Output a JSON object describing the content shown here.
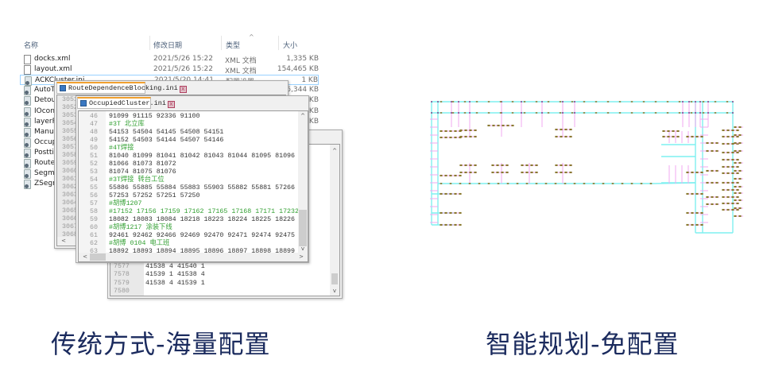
{
  "explorer": {
    "columns": {
      "name": "名称",
      "date": "修改日期",
      "type": "类型",
      "size": "大小"
    },
    "files": [
      {
        "name": "docks.xml",
        "date": "2021/5/26 15:22",
        "type": "XML 文档",
        "size": "1,335 KB",
        "icon": "xml-file-icon"
      },
      {
        "name": "layout.xml",
        "date": "2021/5/26 15:22",
        "type": "XML 文档",
        "size": "154,465 KB",
        "icon": "xml-file-icon"
      },
      {
        "name": "ACKCluster.ini",
        "date": "2021/5/20 14:41",
        "type": "配置设置",
        "size": "1 KB",
        "icon": "ini-file-icon"
      },
      {
        "name": "AutoTra",
        "date": "",
        "type": "",
        "size": "6,344 KB",
        "icon": "ini-file-icon"
      },
      {
        "name": "DetourI",
        "date": "",
        "type": "",
        "size": "KB",
        "icon": "ini-file-icon"
      },
      {
        "name": "IOconfi",
        "date": "",
        "type": "",
        "size": "KB",
        "icon": "ini-file-icon"
      },
      {
        "name": "layerPo",
        "date": "",
        "type": "",
        "size": "KB",
        "icon": "ini-file-icon"
      },
      {
        "name": "Manual",
        "date": "",
        "type": "",
        "size": "",
        "icon": "ini-file-icon"
      },
      {
        "name": "Occupie",
        "date": "",
        "type": "",
        "size": "",
        "icon": "ini-file-icon"
      },
      {
        "name": "Posttion",
        "date": "",
        "type": "",
        "size": "",
        "icon": "ini-file-icon"
      },
      {
        "name": "RouteD",
        "date": "",
        "type": "",
        "size": "",
        "icon": "ini-file-icon"
      },
      {
        "name": "Segmen",
        "date": "",
        "type": "",
        "size": "",
        "icon": "ini-file-icon"
      },
      {
        "name": "ZSegme",
        "date": "",
        "type": "",
        "size": "",
        "icon": "ini-file-icon"
      }
    ]
  },
  "editor1": {
    "tab": "RouteDependenceBlocking.ini",
    "close": "x",
    "lines": [
      "3051",
      "3052",
      "3053",
      "3054",
      "3055",
      "3056",
      "3057",
      "3058",
      "3059",
      "3060",
      "3061",
      "3062",
      "3063",
      "3064",
      "3065",
      "3066",
      "3067",
      "3068"
    ]
  },
  "editor2": {
    "tab": "OccupiedCluster.ini",
    "close": "x",
    "lines": [
      {
        "n": "46",
        "t": "91099 91115 92336 91100",
        "c": false
      },
      {
        "n": "47",
        "t": "#3T 北立库",
        "c": true
      },
      {
        "n": "48",
        "t": "54153 54504 54145 54508 54151",
        "c": false
      },
      {
        "n": "49",
        "t": "54152 54503 54144 54507 54146",
        "c": false
      },
      {
        "n": "50",
        "t": "#4T焊接",
        "c": true
      },
      {
        "n": "51",
        "t": "81040 81099 81041 81042 81043 81044 81095 81096",
        "c": false
      },
      {
        "n": "52",
        "t": "81066 81073 81072",
        "c": false
      },
      {
        "n": "53",
        "t": "81074 81075 81076",
        "c": false
      },
      {
        "n": "54",
        "t": "#3T焊接 转台工位",
        "c": true
      },
      {
        "n": "55",
        "t": "55886 55885 55884 55883 55903 55882 55881 57266",
        "c": false
      },
      {
        "n": "56",
        "t": "57253 57252 57251 57250",
        "c": false
      },
      {
        "n": "57",
        "t": "#胡博1207",
        "c": true
      },
      {
        "n": "58",
        "t": "#17152 17156 17159 17162 17165 17168 17171 17232",
        "c": true
      },
      {
        "n": "59",
        "t": "18082 18083 18084 18218 18223 18224 18225 18226",
        "c": false
      },
      {
        "n": "60",
        "t": "#胡博1217 涂装下线",
        "c": true
      },
      {
        "n": "61",
        "t": "92461 92462 92466 92469 92470 92471 92474 92475",
        "c": false
      },
      {
        "n": "62",
        "t": "#胡博 0104 电工班",
        "c": true
      },
      {
        "n": "63",
        "t": "18892 18893 18894 18895 18896 18897 18898 18899",
        "c": false
      }
    ]
  },
  "editor3": {
    "lines": [
      {
        "n": "7577",
        "t": "41538 4 41540 1"
      },
      {
        "n": "7578",
        "t": "41539 1 41538 4"
      },
      {
        "n": "7579",
        "t": "41538 4 41539 1"
      },
      {
        "n": "7580",
        "t": ""
      }
    ]
  },
  "captions": {
    "left": "传统方式-海量配置",
    "right": "智能规划-免配置"
  },
  "colors": {
    "caption": "#1b2b5e",
    "comment": "#33a033",
    "path_main": "#7ff0f0",
    "path_branch": "#f0a8f0",
    "marker": "#8a7a30",
    "node": "#7a2a7a"
  }
}
